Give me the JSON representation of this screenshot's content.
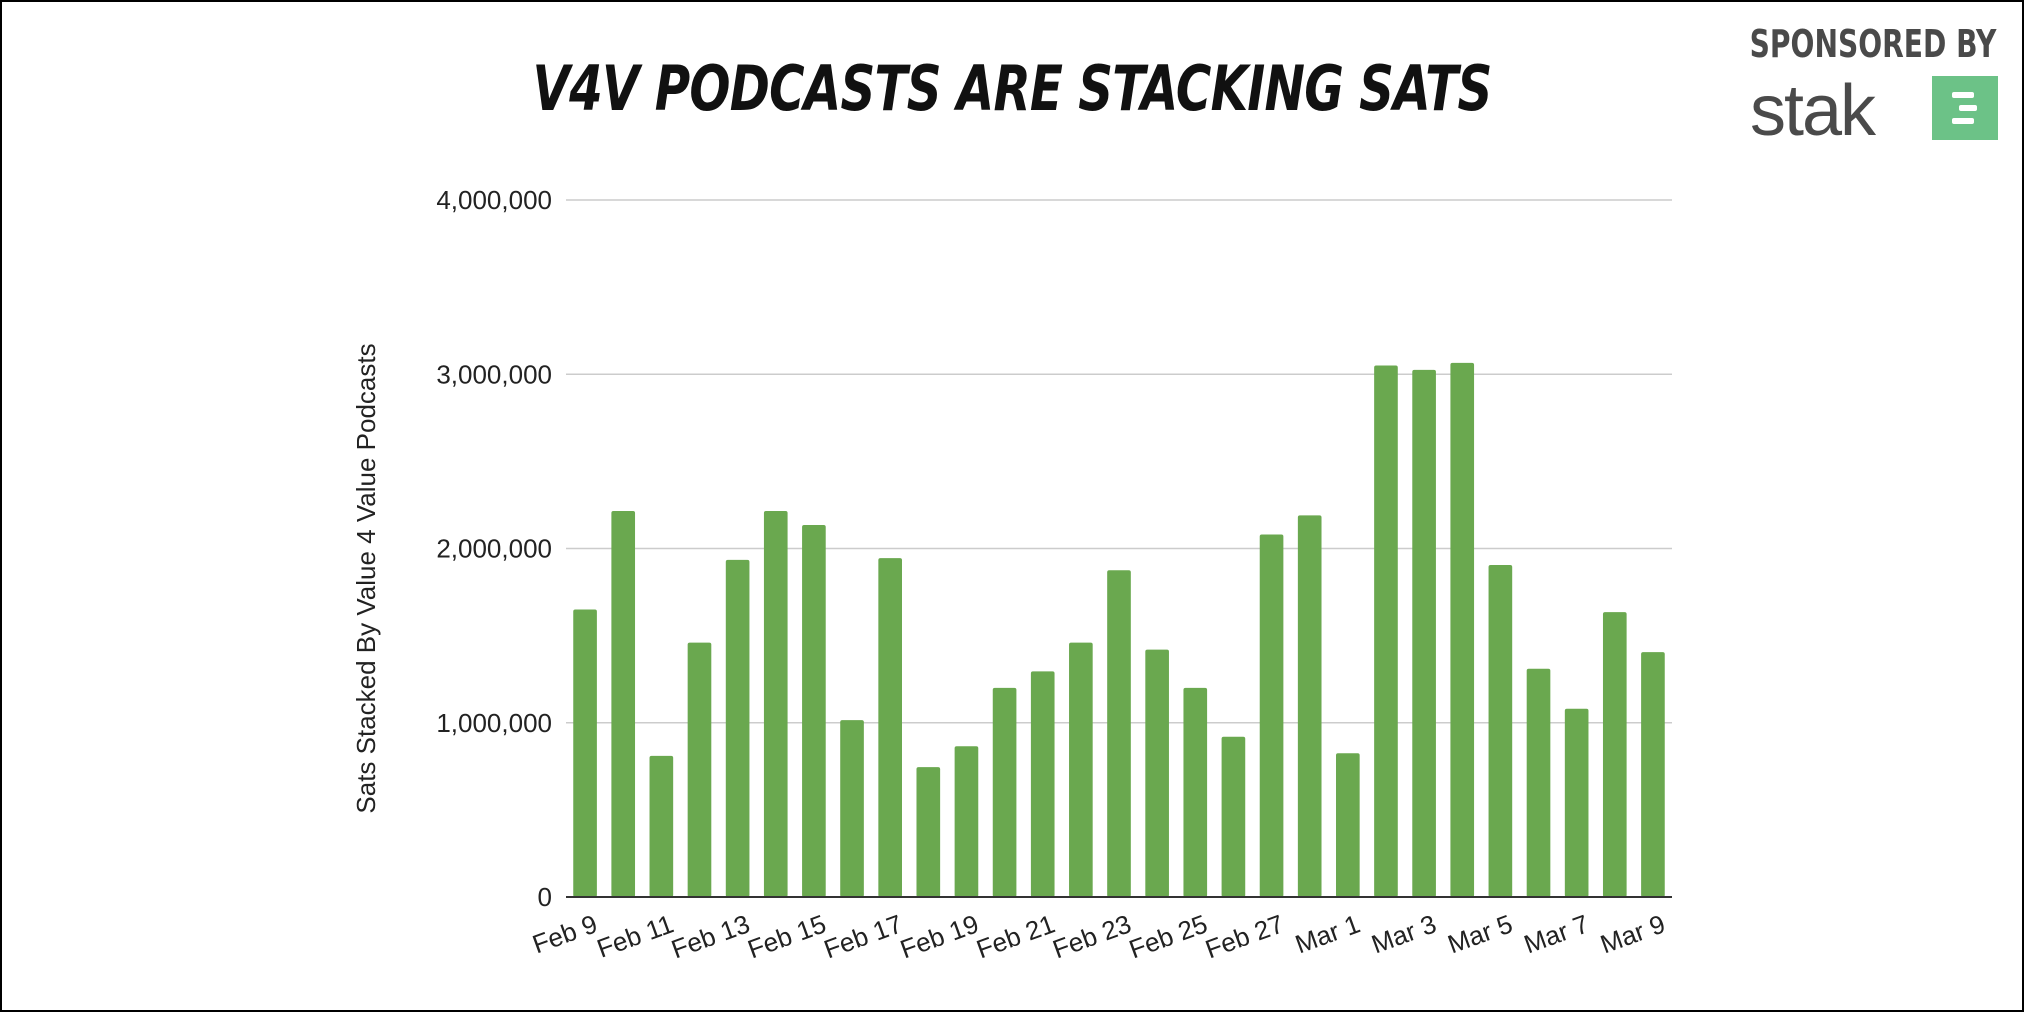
{
  "title": "V4V PODCASTS ARE STACKING SATS",
  "sponsor": {
    "label": "SPONSORED BY",
    "brand": "stak",
    "logo_icon": "stak-logo-icon",
    "logo_color": "#6cc287"
  },
  "chart_data": {
    "type": "bar",
    "title": "V4V PODCASTS ARE STACKING SATS",
    "xlabel": "",
    "ylabel": "Sats Stacked By Value 4 Value Podcasts",
    "ylim": [
      0,
      4000000
    ],
    "yticks": [
      0,
      1000000,
      2000000,
      3000000,
      4000000
    ],
    "ytick_labels": [
      "0",
      "1,000,000",
      "2,000,000",
      "3,000,000",
      "4,000,000"
    ],
    "grid": true,
    "bar_color": "#6aa84f",
    "categories": [
      "Feb 9",
      "Feb 10",
      "Feb 11",
      "Feb 12",
      "Feb 13",
      "Feb 14",
      "Feb 15",
      "Feb 16",
      "Feb 17",
      "Feb 18",
      "Feb 19",
      "Feb 20",
      "Feb 21",
      "Feb 22",
      "Feb 23",
      "Feb 24",
      "Feb 25",
      "Feb 26",
      "Feb 27",
      "Feb 28",
      "Mar 1",
      "Mar 2",
      "Mar 3",
      "Mar 4",
      "Mar 5",
      "Mar 6",
      "Mar 7",
      "Mar 8",
      "Mar 9"
    ],
    "xtick_labels": [
      "Feb 9",
      "Feb 11",
      "Feb 13",
      "Feb 15",
      "Feb 17",
      "Feb 19",
      "Feb 21",
      "Feb 23",
      "Feb 25",
      "Feb 27",
      "Mar 1",
      "Mar 3",
      "Mar 5",
      "Mar 7",
      "Mar 9"
    ],
    "values": [
      1650000,
      2215000,
      810000,
      1460000,
      1935000,
      2215000,
      2135000,
      1015000,
      1945000,
      745000,
      865000,
      1200000,
      1295000,
      1460000,
      1875000,
      1420000,
      1200000,
      920000,
      2080000,
      2190000,
      825000,
      3050000,
      3025000,
      3065000,
      1905000,
      1310000,
      1080000,
      1635000,
      1405000
    ]
  }
}
